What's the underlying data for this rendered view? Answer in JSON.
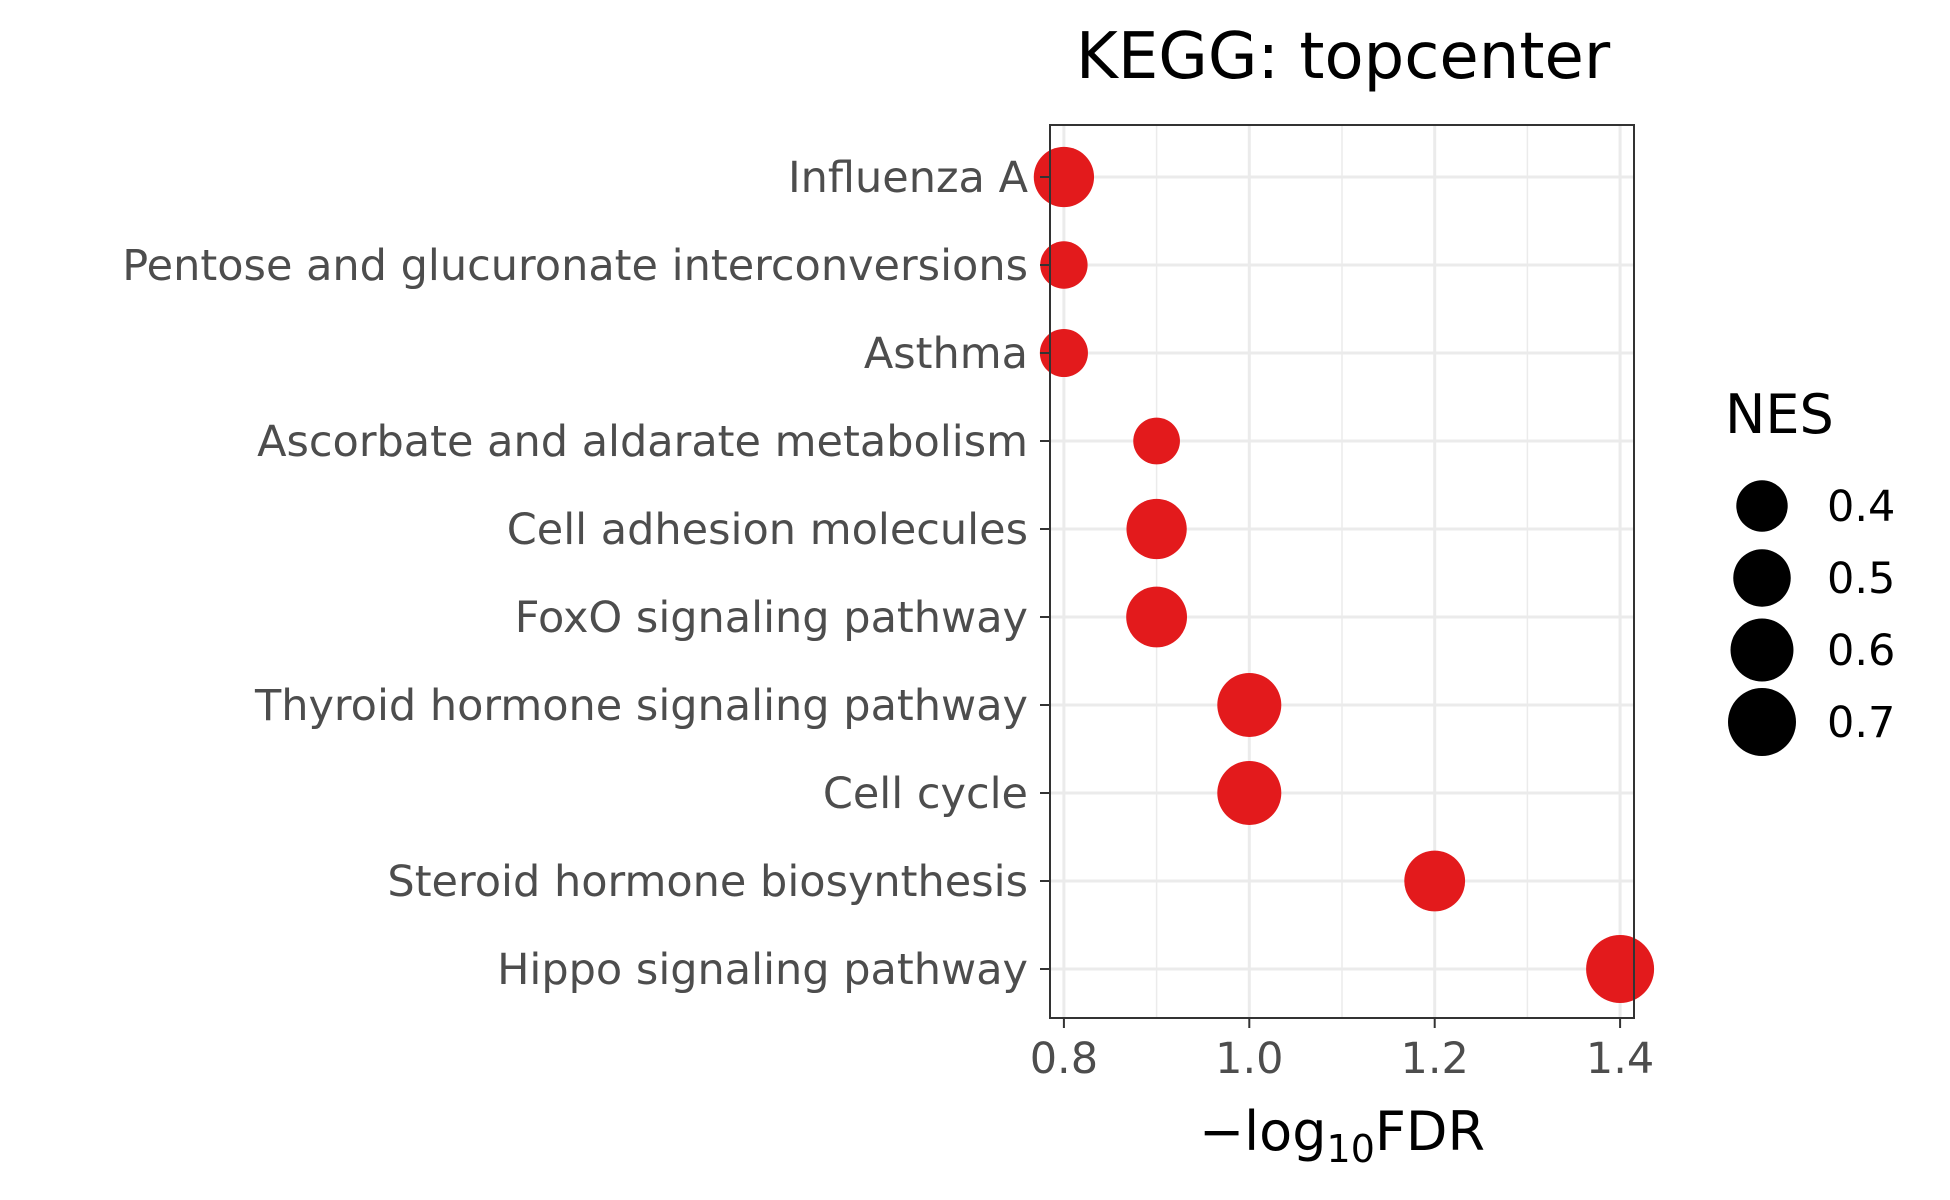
{
  "chart_data": {
    "type": "scatter",
    "title": "KEGG: topcenter",
    "xlabel": "−log10FDR",
    "xlabel_parts": {
      "prefix": "−log",
      "subscript": "10",
      "suffix": "FDR"
    },
    "ylabel": "",
    "xlim": [
      0.785,
      1.415
    ],
    "xticks": [
      "0.8",
      "1.0",
      "1.2",
      "1.4"
    ],
    "xtick_values": [
      0.8,
      1.0,
      1.2,
      1.4
    ],
    "categories": [
      "Influenza A",
      "Pentose and glucuronate interconversions",
      "Asthma",
      "Ascorbate and aldarate metabolism",
      "Cell adhesion molecules",
      "FoxO signaling pathway",
      "Thyroid hormone signaling pathway",
      "Cell cycle",
      "Steroid hormone biosynthesis",
      "Hippo signaling pathway"
    ],
    "x": [
      0.8,
      0.8,
      0.8,
      0.9,
      0.9,
      0.9,
      1.0,
      1.0,
      1.2,
      1.4
    ],
    "size_values": [
      0.55,
      0.34,
      0.35,
      0.33,
      0.55,
      0.56,
      0.62,
      0.62,
      0.56,
      0.7
    ],
    "size_variable": "NES",
    "color": "#e31a1c",
    "grid": true,
    "legend": {
      "title": "NES",
      "position": "right",
      "labels": [
        "0.4",
        "0.5",
        "0.6",
        "0.7"
      ],
      "values": [
        0.4,
        0.5,
        0.6,
        0.7
      ]
    }
  }
}
